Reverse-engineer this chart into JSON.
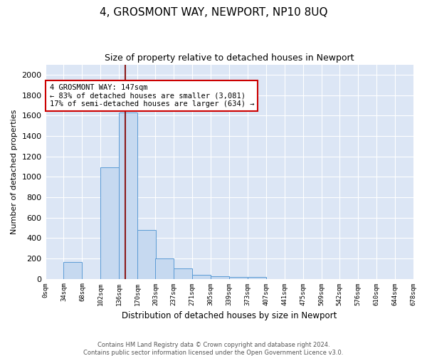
{
  "title": "4, GROSMONT WAY, NEWPORT, NP10 8UQ",
  "subtitle": "Size of property relative to detached houses in Newport",
  "xlabel": "Distribution of detached houses by size in Newport",
  "ylabel": "Number of detached properties",
  "bin_edges": [
    0,
    34,
    68,
    102,
    136,
    170,
    203,
    237,
    271,
    305,
    339,
    373,
    407,
    441,
    475,
    509,
    542,
    576,
    610,
    644,
    678
  ],
  "bar_heights": [
    0,
    165,
    0,
    1090,
    1630,
    480,
    200,
    100,
    40,
    25,
    15,
    15,
    0,
    0,
    0,
    0,
    0,
    0,
    0,
    0
  ],
  "bar_color": "#c6d9f0",
  "bar_edge_color": "#5b9bd5",
  "property_size": 147,
  "vline_color": "#8b1a1a",
  "annotation_text": "4 GROSMONT WAY: 147sqm\n← 83% of detached houses are smaller (3,081)\n17% of semi-detached houses are larger (634) →",
  "annotation_box_color": "white",
  "annotation_box_edge_color": "#cc0000",
  "background_color": "#dce6f5",
  "ylim": [
    0,
    2100
  ],
  "yticks": [
    0,
    200,
    400,
    600,
    800,
    1000,
    1200,
    1400,
    1600,
    1800,
    2000
  ],
  "footer_line1": "Contains HM Land Registry data © Crown copyright and database right 2024.",
  "footer_line2": "Contains public sector information licensed under the Open Government Licence v3.0."
}
